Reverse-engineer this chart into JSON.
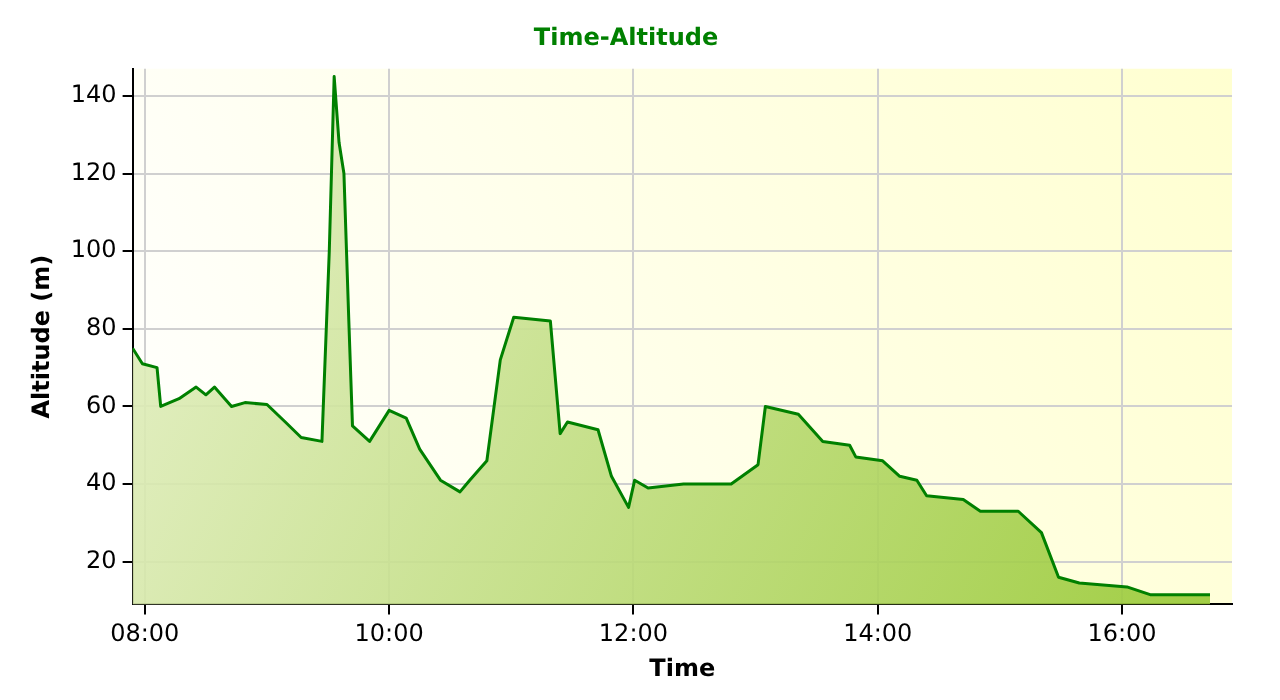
{
  "chart_data": {
    "type": "area",
    "title": "Time-Altitude",
    "xlabel": "Time",
    "ylabel": "Altitude (m)",
    "x": [
      7.9,
      7.98,
      8.1,
      8.13,
      8.28,
      8.42,
      8.5,
      8.57,
      8.71,
      8.82,
      9.0,
      9.15,
      9.28,
      9.45,
      9.51,
      9.55,
      9.59,
      9.63,
      9.67,
      9.7,
      9.84,
      10.0,
      10.14,
      10.25,
      10.42,
      10.58,
      10.66,
      10.8,
      10.91,
      11.02,
      11.32,
      11.4,
      11.46,
      11.71,
      11.82,
      11.96,
      12.01,
      12.12,
      12.41,
      12.8,
      13.02,
      13.08,
      13.35,
      13.55,
      13.77,
      13.82,
      14.04,
      14.18,
      14.32,
      14.4,
      14.7,
      14.84,
      15.15,
      15.34,
      15.48,
      15.65,
      16.04,
      16.23,
      16.72
    ],
    "series": [
      {
        "color": "#008000",
        "values": [
          75,
          71,
          70,
          60,
          62,
          65,
          63,
          65,
          60,
          61,
          60.5,
          56,
          52,
          51,
          100,
          145,
          128,
          120,
          82,
          55,
          51,
          59,
          57,
          49,
          41,
          38,
          41,
          46,
          72,
          83,
          82,
          53,
          56,
          54,
          42,
          34,
          41,
          39,
          40,
          40,
          45,
          60,
          58,
          51,
          50,
          47,
          46,
          42,
          41,
          37,
          36,
          33,
          33,
          27.5,
          16,
          14.5,
          13.5,
          11.5,
          11.5
        ]
      }
    ],
    "xlim": [
      7.9,
      16.9
    ],
    "ylim": [
      9,
      147
    ],
    "xticks": [
      {
        "value": 8,
        "label": "08:00"
      },
      {
        "value": 10,
        "label": "10:00"
      },
      {
        "value": 12,
        "label": "12:00"
      },
      {
        "value": 14,
        "label": "14:00"
      },
      {
        "value": 16,
        "label": "16:00"
      }
    ],
    "yticks": [
      20,
      40,
      60,
      80,
      100,
      120,
      140
    ],
    "grid": true,
    "legend": false,
    "marker": "none",
    "line_style": "solid"
  }
}
